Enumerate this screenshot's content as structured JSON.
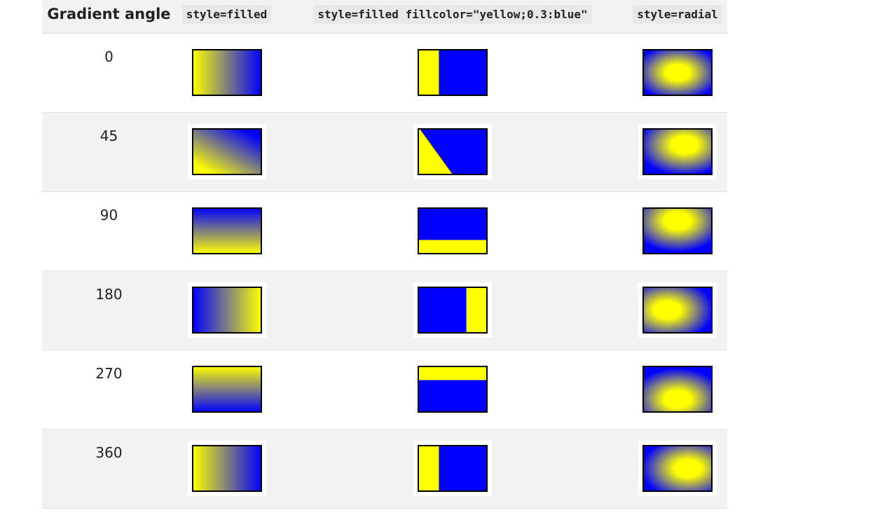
{
  "header": {
    "angle_label": "Gradient angle",
    "col_filled": "style=filled",
    "col_filled_fillcolor": "style=filled fillcolor=\"yellow;0.3:blue\"",
    "col_radial": "style=radial"
  },
  "colors": {
    "yellow": "#ffff00",
    "blue": "#0000ff",
    "border": "#000000"
  },
  "rows": [
    {
      "angle": "0"
    },
    {
      "angle": "45"
    },
    {
      "angle": "90"
    },
    {
      "angle": "180"
    },
    {
      "angle": "270"
    },
    {
      "angle": "360"
    }
  ]
}
